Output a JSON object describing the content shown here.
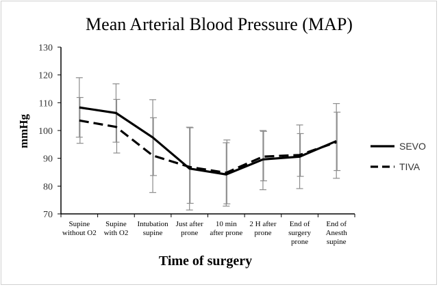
{
  "chart_data": {
    "type": "line",
    "title": "Mean Arterial Blood Pressure (MAP)",
    "xlabel": "Time of surgery",
    "ylabel": "mmHg",
    "ylim": [
      70,
      130
    ],
    "yticks": [
      70,
      80,
      90,
      100,
      110,
      120,
      130
    ],
    "categories": [
      [
        "Supine",
        "without O2"
      ],
      [
        "Supine",
        "with O2"
      ],
      [
        "Intubation",
        "supine"
      ],
      [
        "Just after",
        "prone"
      ],
      [
        "10 min",
        "after prone"
      ],
      [
        "2 H after",
        "prone"
      ],
      [
        "End of",
        "surgery",
        "prone"
      ],
      [
        "End of",
        "Anesth",
        "supine"
      ]
    ],
    "grid": false,
    "legend_position": "right",
    "series": [
      {
        "name": "SEVO",
        "style": "solid",
        "color": "#000000",
        "values": [
          108.3,
          106.3,
          97.5,
          86.3,
          84.2,
          89.6,
          90.6,
          96.2
        ],
        "error_low": [
          97.6,
          95.8,
          77.7,
          71.4,
          72.8,
          78.7,
          79.1,
          82.8
        ],
        "error_high": [
          119.0,
          116.8,
          111.1,
          101.2,
          95.6,
          100.0,
          102.0,
          109.7
        ]
      },
      {
        "name": "TIVA",
        "style": "dashed",
        "color": "#000000",
        "values": [
          103.6,
          101.3,
          91.0,
          86.9,
          84.8,
          90.6,
          91.2,
          95.8
        ],
        "error_low": [
          95.4,
          91.9,
          83.8,
          73.8,
          73.6,
          81.9,
          83.5,
          85.6
        ],
        "error_high": [
          111.9,
          111.2,
          104.6,
          101.0,
          96.6,
          99.7,
          98.9,
          106.6
        ]
      }
    ]
  }
}
